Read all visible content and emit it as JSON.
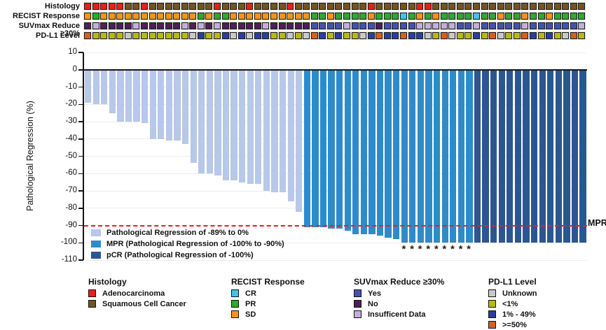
{
  "colors": {
    "bar": {
      "L": "#b7c8e8",
      "M": "#2e8bca",
      "D": "#2d5691"
    },
    "mpr_line": "#ed1c24",
    "gridline": "#ededed",
    "axis": "#141414"
  },
  "palettes": {
    "histology": {
      "A": {
        "label": "Adenocarcinoma",
        "color": "#e2231a"
      },
      "S": {
        "label": "Squamous Cell Cancer",
        "color": "#715523"
      }
    },
    "recist": {
      "C": {
        "label": "CR",
        "color": "#45c2e8"
      },
      "G": {
        "label": "PR",
        "color": "#2ea836"
      },
      "O": {
        "label": "SD",
        "color": "#f69320"
      }
    },
    "suvmax": {
      "Y": {
        "label": "Yes",
        "color": "#4253ae"
      },
      "N": {
        "label": "No",
        "color": "#4f1f57"
      },
      "I": {
        "label": "Insufficent Data",
        "color": "#c4aede"
      }
    },
    "pdl1": {
      "U": {
        "label": "Unknown",
        "color": "#c9c9c9"
      },
      "L": {
        "label": "<1%",
        "color": "#b7bb0a"
      },
      "M": {
        "label": "1% - 49%",
        "color": "#2a3f9d"
      },
      "H": {
        "label": ">=50%",
        "color": "#d5611d"
      }
    }
  },
  "tracks": {
    "rows": [
      {
        "label": "Histology",
        "palette": "histology",
        "cells": "AAAAASSASSSSSSSSASSSASSSSASSSSSSSSSASSSSSAASSSSSSSSSSSSSSSSSSS"
      },
      {
        "label": "RECIST Response",
        "palette": "recist",
        "cells": "OGOOOOOOOOOOOOGOGGOOOOOOOOOOGGOGGGGOGGGCGOGOGGGGCGGOGGOGGOGGGG"
      },
      {
        "label": "SUVmax Reduce ≥30%",
        "palette": "suvmax",
        "cells": "NINNNNINNNNNINININNNNNINNNNNYYYYIYYYNYYYYIIIIIYYIYYYYYIYYYYYYI"
      },
      {
        "label": "PD-L1 Level",
        "palette": "pdl1",
        "cells": "HLLLLULLLLLLLUMLLMUMUMMLLULUHMLMLLUMHMMHMMULHULLMLHULLHMLMLUHL"
      }
    ]
  },
  "chart_data": {
    "type": "bar",
    "ylabel": "Pathological Regression (%)",
    "ylim": [
      -110,
      10
    ],
    "yticks": [
      10,
      0,
      -10,
      -20,
      -30,
      -40,
      -50,
      -60,
      -70,
      -80,
      -90,
      -100,
      -110
    ],
    "grid": "horizontal-faint",
    "values": [
      -19,
      -20,
      -20,
      -25,
      -30,
      -30,
      -30,
      -31,
      -40,
      -40,
      -41,
      -41,
      -43,
      -54,
      -60,
      -60,
      -61,
      -64,
      -64,
      -65,
      -66,
      -66,
      -70,
      -71,
      -71,
      -76,
      -82,
      -91,
      -91,
      -91,
      -92,
      -92,
      -93,
      -95,
      -95,
      -95,
      -96,
      -97,
      -98,
      -100,
      -100,
      -100,
      -100,
      -100,
      -100,
      -100,
      -100,
      -100,
      -100,
      -100,
      -100,
      -100,
      -100,
      -100,
      -100,
      -100,
      -100,
      -100,
      -100,
      -100,
      -100,
      -100
    ],
    "bar_groups": "LLLLLLLLLLLLLLLLLLLLLLLLLLLMMMMMMMMMMMMMMMMMMMMMDDDDDDDDDDDDDD",
    "starred_bars": [
      39,
      40,
      41,
      42,
      43,
      44,
      45,
      46,
      47
    ],
    "star_symbol": "*",
    "reference_line": {
      "y": -90,
      "label": "MPR"
    },
    "legend": [
      {
        "group": "L",
        "label": "Pathological Regression of -89% to 0%"
      },
      {
        "group": "M",
        "label": "MPR (Pathological Regression of -100% to -90%)"
      },
      {
        "group": "D",
        "label": "pCR (Pathological Regression of -100%)"
      }
    ]
  },
  "bottom_legend": {
    "groups": [
      {
        "title": "Histology",
        "palette": "histology",
        "keys": [
          "A",
          "S"
        ]
      },
      {
        "title": "RECIST Response",
        "palette": "recist",
        "keys": [
          "C",
          "G",
          "O"
        ]
      },
      {
        "title": "SUVmax Reduce ≥30%",
        "palette": "suvmax",
        "keys": [
          "Y",
          "N",
          "I"
        ]
      },
      {
        "title": "PD-L1 Level",
        "palette": "pdl1",
        "keys": [
          "U",
          "L",
          "M",
          "H"
        ]
      }
    ]
  }
}
